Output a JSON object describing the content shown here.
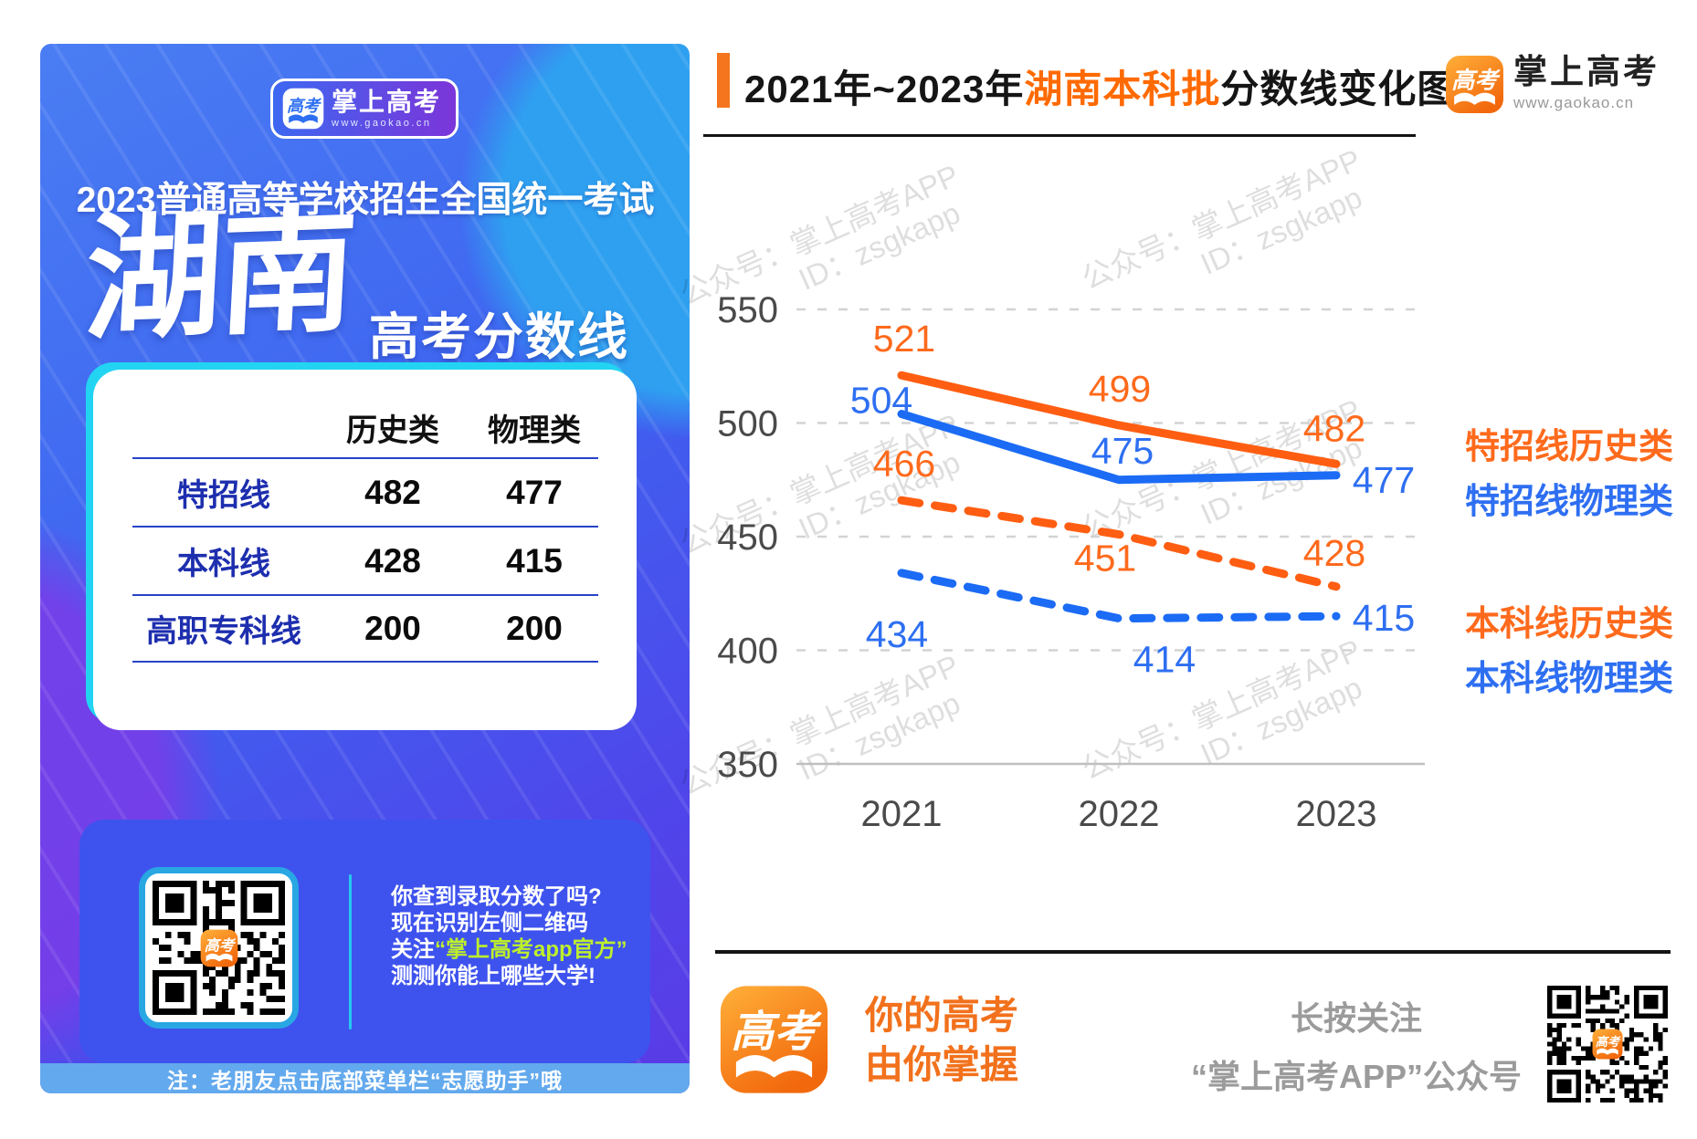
{
  "poster": {
    "badge": {
      "icon_text": "高考",
      "app_name": "掌上高考",
      "website": "www.gaokao.cn"
    },
    "heading": "2023普通高等学校招生全国统一考试",
    "province": "湖南",
    "subtitle": "高考分数线",
    "score_table": {
      "columns": [
        "历史类",
        "物理类"
      ],
      "rows": [
        {
          "label": "特招线",
          "values": [
            "482",
            "477"
          ]
        },
        {
          "label": "本科线",
          "values": [
            "428",
            "415"
          ]
        },
        {
          "label": "高职专科线",
          "values": [
            "200",
            "200"
          ]
        }
      ]
    },
    "qr_section": {
      "line1": "你查到录取分数了吗?",
      "line2": "现在识别左侧二维码",
      "line3_prefix": "关注",
      "line3_highlight": "“掌上高考app官方”",
      "line4": "测测你能上哪些大学!"
    },
    "footer_note": "注：老朋友点击底部菜单栏“志愿助手”哦"
  },
  "header": {
    "title_black1": "2021年~2023年",
    "title_orange": "湖南本科批",
    "title_black2": "分数线变化图",
    "logo": {
      "icon_text": "高考",
      "app_name": "掌上高考",
      "website": "www.gaokao.cn"
    }
  },
  "chart_data": {
    "type": "line",
    "x": [
      2021,
      2022,
      2023
    ],
    "series": [
      {
        "name": "特招线历史类",
        "values": [
          521,
          499,
          482
        ],
        "color": "#FF5E12",
        "label_color": "#FF6A1C",
        "style": "solid"
      },
      {
        "name": "特招线物理类",
        "values": [
          504,
          475,
          477
        ],
        "color": "#1B6BF5",
        "label_color": "#2E6FF2",
        "style": "solid"
      },
      {
        "name": "本科线历史类",
        "values": [
          466,
          451,
          428
        ],
        "color": "#FF5E12",
        "label_color": "#FF6A1C",
        "style": "dashed"
      },
      {
        "name": "本科线物理类",
        "values": [
          434,
          414,
          415
        ],
        "color": "#1B6BF5",
        "label_color": "#2E6FF2",
        "style": "dashed"
      }
    ],
    "yticks": [
      550,
      500,
      450,
      400,
      350
    ],
    "ylim": [
      350,
      570
    ],
    "grid": "horizontal dashed, baseline 350 solid",
    "legend_position": "right"
  },
  "watermark": {
    "line1": "公众号：掌上高考APP",
    "line2": "ID：zsgkapp"
  },
  "footer": {
    "icon_text": "高考",
    "slogan_line1": "你的高考",
    "slogan_line2": "由你掌握",
    "follow_line1": "长按关注",
    "follow_line2": "“掌上高考APP”公众号"
  },
  "colors": {
    "orange": "#FF6A1C",
    "blue": "#1B6BF5",
    "poster_blue": "#3D63F0",
    "highlight_green": "#BEEF2C",
    "cyan_accent": "#22D4F1"
  }
}
